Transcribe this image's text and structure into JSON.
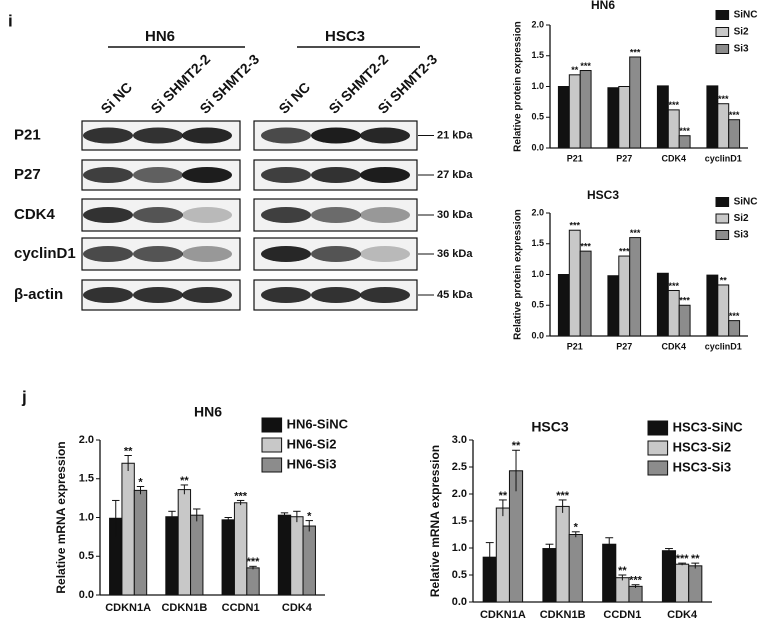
{
  "panels": [
    "i",
    "j"
  ],
  "blot": {
    "groups": [
      "HN6",
      "HSC3"
    ],
    "lanes": [
      "Si NC",
      "Si SHMT2-2",
      "Si SHMT2-3",
      "Si NC",
      "Si SHMT2-2",
      "Si SHMT2-3"
    ],
    "rows": [
      "P21",
      "P27",
      "CDK4",
      "cyclinD1",
      "β-actin"
    ],
    "sizes": [
      "21 kDa",
      "27 kDa",
      "30 kDa",
      "36 kDa",
      "45 kDa"
    ]
  },
  "chart_data": [
    {
      "type": "bar",
      "title": "HN6",
      "ylabel": "Relative protein expression",
      "categories": [
        "P21",
        "P27",
        "CDK4",
        "cyclinD1"
      ],
      "series": [
        {
          "name": "SiNC",
          "color": "#111111",
          "values": [
            1.0,
            0.98,
            1.01,
            1.01
          ],
          "significance": [
            null,
            null,
            null,
            null
          ]
        },
        {
          "name": "Si2",
          "color": "#c8c8c8",
          "values": [
            1.19,
            1.0,
            0.62,
            0.72
          ],
          "significance": [
            "**",
            null,
            "***",
            "***"
          ]
        },
        {
          "name": "Si3",
          "color": "#8c8c8c",
          "values": [
            1.26,
            1.48,
            0.2,
            0.46
          ],
          "significance": [
            "***",
            "***",
            "***",
            "***"
          ]
        }
      ],
      "ylim": [
        0,
        2.0
      ],
      "yticks": [
        {
          "value": 0,
          "label": "0.0"
        },
        0.5,
        {
          "value": 1,
          "label": "1.0"
        },
        1.5,
        {
          "value": 2,
          "label": "2.0"
        }
      ]
    },
    {
      "type": "bar",
      "title": "HSC3",
      "ylabel": "Relative protein expression",
      "categories": [
        "P21",
        "P27",
        "CDK4",
        "cyclinD1"
      ],
      "series": [
        {
          "name": "SiNC",
          "color": "#111111",
          "values": [
            1.0,
            0.98,
            1.02,
            0.99
          ],
          "significance": [
            null,
            null,
            null,
            null
          ]
        },
        {
          "name": "Si2",
          "color": "#c8c8c8",
          "values": [
            1.72,
            1.3,
            0.74,
            0.83
          ],
          "significance": [
            "***",
            "***",
            "***",
            "**"
          ]
        },
        {
          "name": "Si3",
          "color": "#8c8c8c",
          "values": [
            1.38,
            1.6,
            0.5,
            0.25
          ],
          "significance": [
            "***",
            "***",
            "***",
            "***"
          ]
        }
      ],
      "ylim": [
        0,
        2.0
      ],
      "yticks": [
        {
          "value": 0,
          "label": "0.0"
        },
        0.5,
        {
          "value": 1,
          "label": "1.0"
        },
        1.5,
        {
          "value": 2,
          "label": "2.0"
        }
      ]
    },
    {
      "type": "bar",
      "title": "HN6",
      "ylabel": "Relative mRNA expression",
      "categories": [
        "CDKN1A",
        "CDKN1B",
        "CCDN1",
        "CDK4"
      ],
      "series": [
        {
          "name": "HN6-SiNC",
          "color": "#111111",
          "values": [
            0.99,
            1.01,
            0.97,
            1.03
          ],
          "errors": [
            0.23,
            0.07,
            0.03,
            0.03
          ],
          "significance": [
            null,
            null,
            null,
            null
          ]
        },
        {
          "name": "HN6-Si2",
          "color": "#c8c8c8",
          "values": [
            1.7,
            1.36,
            1.19,
            1.01
          ],
          "errors": [
            0.1,
            0.06,
            0.03,
            0.07
          ],
          "significance": [
            "**",
            "**",
            "***",
            null
          ]
        },
        {
          "name": "HN6-Si3",
          "color": "#8c8c8c",
          "values": [
            1.35,
            1.03,
            0.35,
            0.89
          ],
          "errors": [
            0.05,
            0.08,
            0.02,
            0.07
          ],
          "significance": [
            "*",
            null,
            "***",
            "*"
          ]
        }
      ],
      "ylim": [
        0,
        2.0
      ],
      "yticks": [
        {
          "value": 0,
          "label": "0.0"
        },
        0.5,
        {
          "value": 1,
          "label": "1.0"
        },
        1.5,
        {
          "value": 2,
          "label": "2.0"
        }
      ]
    },
    {
      "type": "bar",
      "title": "HSC3",
      "ylabel": "Relative mRNA expression",
      "categories": [
        "CDKN1A",
        "CDKN1B",
        "CCDN1",
        "CDK4"
      ],
      "series": [
        {
          "name": "HSC3-SiNC",
          "color": "#111111",
          "values": [
            0.83,
            0.99,
            1.07,
            0.95
          ],
          "errors": [
            0.27,
            0.08,
            0.12,
            0.04
          ],
          "significance": [
            null,
            null,
            null,
            null
          ]
        },
        {
          "name": "HSC3-Si2",
          "color": "#c8c8c8",
          "values": [
            1.74,
            1.77,
            0.45,
            0.7
          ],
          "errors": [
            0.15,
            0.12,
            0.05,
            0.02
          ],
          "significance": [
            "**",
            "***",
            "**",
            "***"
          ]
        },
        {
          "name": "HSC3-Si3",
          "color": "#8c8c8c",
          "values": [
            2.43,
            1.25,
            0.29,
            0.67
          ],
          "errors": [
            0.38,
            0.05,
            0.03,
            0.05
          ],
          "significance": [
            "**",
            "*",
            "***",
            "**"
          ]
        }
      ],
      "ylim": [
        0,
        3.0
      ],
      "yticks": [
        {
          "value": 0,
          "label": "0.0"
        },
        0.5,
        {
          "value": 1,
          "label": "1.0"
        },
        1.5,
        {
          "value": 2,
          "label": "2.0"
        },
        2.5,
        {
          "value": 3,
          "label": "3.0"
        }
      ]
    }
  ]
}
